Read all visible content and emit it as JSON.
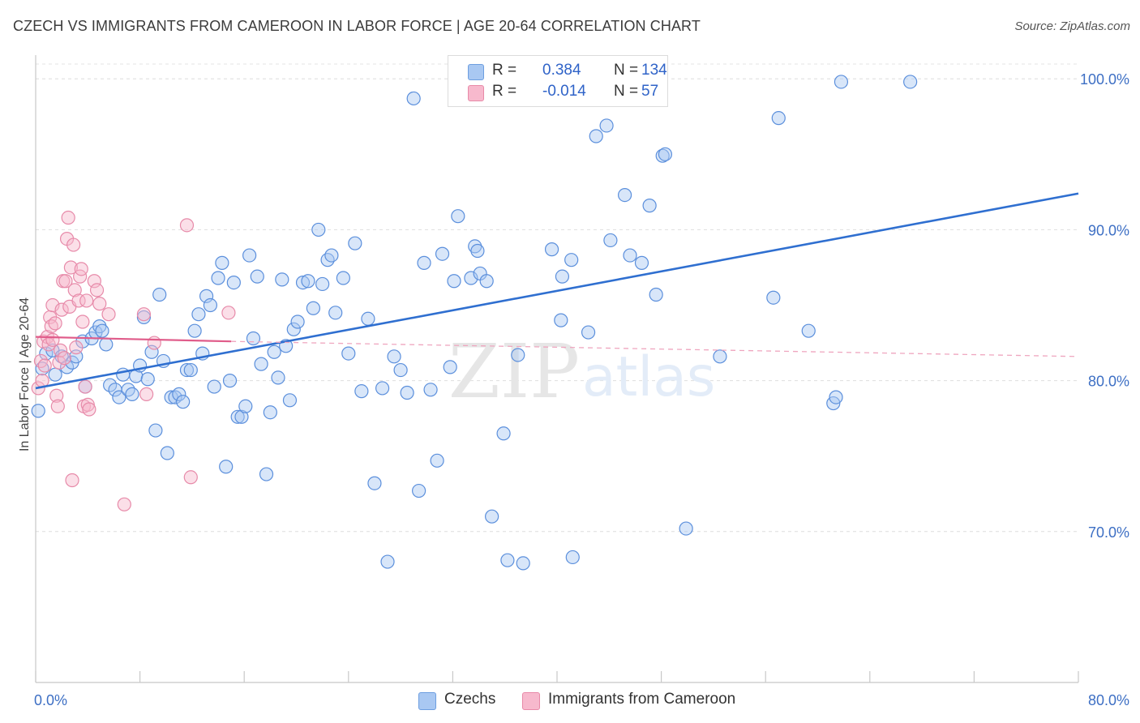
{
  "title": "CZECH VS IMMIGRANTS FROM CAMEROON IN LABOR FORCE | AGE 20-64 CORRELATION CHART",
  "source": "Source: ZipAtlas.com",
  "watermark": {
    "zip": "ZIP",
    "atlas": "atlas"
  },
  "legend": {
    "rows": [
      {
        "r_label": "R =",
        "r_value": "0.384",
        "n_label": "N =",
        "n_value": "134",
        "color": "#a9c8f2",
        "border": "#6d9ee0"
      },
      {
        "r_label": "R =",
        "r_value": "-0.014",
        "n_label": "N =",
        "n_value": "57",
        "color": "#f7b9cd",
        "border": "#e88aa8"
      }
    ]
  },
  "bottom_legend": [
    {
      "label": "Czechs",
      "color": "#a9c8f2",
      "border": "#6d9ee0"
    },
    {
      "label": "Immigrants from Cameroon",
      "color": "#f7b9cd",
      "border": "#e88aa8"
    }
  ],
  "chart_data": {
    "type": "scatter",
    "title": "CZECH VS IMMIGRANTS FROM CAMEROON IN LABOR FORCE | AGE 20-64 CORRELATION CHART",
    "xlabel": "",
    "ylabel": "In Labor Force | Age 20-64",
    "xlim": [
      0,
      80
    ],
    "ylim": [
      60,
      102
    ],
    "y_ticks": [
      {
        "value": 100,
        "label": "100.0%"
      },
      {
        "value": 90,
        "label": "90.0%"
      },
      {
        "value": 80,
        "label": "80.0%"
      },
      {
        "value": 70,
        "label": "70.0%"
      }
    ],
    "x_tick_labels": [
      {
        "value": 0,
        "label": "0.0%"
      },
      {
        "value": 80,
        "label": "80.0%"
      }
    ],
    "x_minor_ticks": [
      0,
      8,
      16,
      24,
      32,
      40,
      48,
      56,
      64,
      72,
      80
    ],
    "grid": true,
    "colors": {
      "czechs_fill": "#a9c8f2",
      "czechs_stroke": "#5b8fdc",
      "czechs_line": "#2f6fd0",
      "cameroon_fill": "#f7b9cd",
      "cameroon_stroke": "#e78aa9",
      "cameroon_line": "#e05c8a"
    },
    "series": [
      {
        "name": "Czechs",
        "trend": {
          "x": [
            0,
            80
          ],
          "y": [
            79.5,
            92.4
          ]
        },
        "points": [
          [
            0.2,
            78.0
          ],
          [
            0.5,
            80.8
          ],
          [
            0.8,
            81.8
          ],
          [
            1.3,
            82.0
          ],
          [
            1.5,
            80.4
          ],
          [
            2.0,
            81.6
          ],
          [
            2.4,
            80.9
          ],
          [
            2.8,
            81.2
          ],
          [
            3.1,
            81.6
          ],
          [
            3.6,
            82.6
          ],
          [
            3.8,
            79.6
          ],
          [
            4.3,
            82.8
          ],
          [
            4.6,
            83.2
          ],
          [
            4.9,
            83.6
          ],
          [
            5.1,
            83.3
          ],
          [
            5.4,
            82.4
          ],
          [
            5.7,
            79.7
          ],
          [
            6.1,
            79.4
          ],
          [
            6.4,
            78.9
          ],
          [
            6.7,
            80.4
          ],
          [
            7.1,
            79.4
          ],
          [
            7.4,
            79.1
          ],
          [
            7.7,
            80.3
          ],
          [
            8.0,
            81.0
          ],
          [
            8.3,
            84.2
          ],
          [
            8.6,
            80.1
          ],
          [
            8.9,
            81.9
          ],
          [
            9.2,
            76.7
          ],
          [
            9.5,
            85.7
          ],
          [
            9.8,
            81.3
          ],
          [
            10.1,
            75.2
          ],
          [
            10.4,
            78.9
          ],
          [
            10.7,
            78.9
          ],
          [
            11.0,
            79.1
          ],
          [
            11.3,
            78.6
          ],
          [
            11.6,
            80.7
          ],
          [
            11.9,
            80.7
          ],
          [
            12.2,
            83.3
          ],
          [
            12.5,
            84.4
          ],
          [
            12.8,
            81.8
          ],
          [
            13.1,
            85.6
          ],
          [
            13.4,
            85.0
          ],
          [
            13.7,
            79.6
          ],
          [
            14.0,
            86.8
          ],
          [
            14.3,
            87.8
          ],
          [
            14.6,
            74.3
          ],
          [
            14.9,
            80.0
          ],
          [
            15.2,
            86.5
          ],
          [
            15.5,
            77.6
          ],
          [
            15.8,
            77.6
          ],
          [
            16.1,
            78.3
          ],
          [
            16.4,
            88.3
          ],
          [
            16.7,
            82.8
          ],
          [
            17.0,
            86.9
          ],
          [
            17.3,
            81.1
          ],
          [
            17.7,
            73.8
          ],
          [
            18.0,
            77.9
          ],
          [
            18.3,
            81.9
          ],
          [
            18.6,
            80.2
          ],
          [
            18.9,
            86.7
          ],
          [
            19.2,
            82.3
          ],
          [
            19.5,
            78.7
          ],
          [
            19.8,
            83.4
          ],
          [
            20.1,
            83.9
          ],
          [
            20.5,
            86.5
          ],
          [
            20.9,
            86.6
          ],
          [
            21.3,
            84.8
          ],
          [
            21.7,
            90.0
          ],
          [
            22.0,
            86.4
          ],
          [
            22.4,
            88.0
          ],
          [
            22.7,
            88.3
          ],
          [
            23.0,
            84.5
          ],
          [
            23.6,
            86.8
          ],
          [
            24.0,
            81.8
          ],
          [
            24.5,
            89.1
          ],
          [
            25.0,
            79.3
          ],
          [
            25.5,
            84.1
          ],
          [
            26.0,
            73.2
          ],
          [
            26.6,
            79.5
          ],
          [
            27.0,
            68.0
          ],
          [
            27.5,
            81.6
          ],
          [
            28.0,
            80.7
          ],
          [
            28.5,
            79.2
          ],
          [
            29.0,
            98.7
          ],
          [
            29.4,
            72.7
          ],
          [
            29.8,
            87.8
          ],
          [
            30.3,
            79.4
          ],
          [
            30.8,
            74.7
          ],
          [
            31.2,
            88.4
          ],
          [
            31.8,
            80.9
          ],
          [
            32.1,
            86.6
          ],
          [
            32.4,
            90.9
          ],
          [
            33.4,
            86.8
          ],
          [
            33.7,
            88.9
          ],
          [
            33.9,
            88.6
          ],
          [
            34.1,
            87.1
          ],
          [
            34.6,
            86.6
          ],
          [
            35.0,
            71.0
          ],
          [
            35.9,
            76.5
          ],
          [
            36.2,
            68.1
          ],
          [
            36.5,
            100.0
          ],
          [
            37.0,
            81.7
          ],
          [
            37.4,
            67.9
          ],
          [
            39.6,
            88.7
          ],
          [
            40.3,
            84.0
          ],
          [
            40.4,
            86.9
          ],
          [
            41.1,
            88.0
          ],
          [
            41.2,
            68.3
          ],
          [
            41.9,
            100.0
          ],
          [
            42.4,
            83.2
          ],
          [
            43.0,
            96.2
          ],
          [
            43.8,
            96.9
          ],
          [
            44.1,
            89.3
          ],
          [
            44.9,
            99.9
          ],
          [
            45.2,
            92.3
          ],
          [
            45.6,
            88.3
          ],
          [
            46.5,
            87.8
          ],
          [
            47.1,
            91.6
          ],
          [
            47.6,
            85.7
          ],
          [
            48.1,
            94.9
          ],
          [
            48.3,
            95.0
          ],
          [
            49.9,
            70.2
          ],
          [
            52.5,
            81.6
          ],
          [
            56.6,
            85.5
          ],
          [
            57.0,
            97.4
          ],
          [
            59.3,
            83.3
          ],
          [
            61.2,
            78.5
          ],
          [
            61.4,
            78.9
          ],
          [
            61.8,
            99.8
          ],
          [
            67.1,
            99.8
          ]
        ]
      },
      {
        "name": "Immigrants from Cameroon",
        "trend_solid": {
          "x": [
            0,
            15
          ],
          "y": [
            82.9,
            82.6
          ]
        },
        "trend_dashed": {
          "x": [
            15,
            80
          ],
          "y": [
            82.6,
            81.6
          ]
        },
        "points": [
          [
            0.2,
            79.5
          ],
          [
            0.4,
            81.3
          ],
          [
            0.5,
            80.0
          ],
          [
            0.6,
            82.6
          ],
          [
            0.7,
            81.0
          ],
          [
            0.9,
            82.9
          ],
          [
            1.0,
            82.4
          ],
          [
            1.1,
            84.2
          ],
          [
            1.2,
            83.6
          ],
          [
            1.3,
            85.0
          ],
          [
            1.3,
            82.7
          ],
          [
            1.5,
            83.8
          ],
          [
            1.6,
            79.0
          ],
          [
            1.7,
            78.3
          ],
          [
            1.8,
            81.2
          ],
          [
            1.9,
            82.0
          ],
          [
            2.0,
            84.7
          ],
          [
            2.1,
            86.6
          ],
          [
            2.2,
            81.5
          ],
          [
            2.3,
            86.6
          ],
          [
            2.4,
            89.4
          ],
          [
            2.5,
            90.8
          ],
          [
            2.6,
            84.9
          ],
          [
            2.7,
            87.5
          ],
          [
            2.8,
            73.4
          ],
          [
            2.9,
            89.0
          ],
          [
            3.0,
            86.0
          ],
          [
            3.1,
            82.2
          ],
          [
            3.3,
            85.3
          ],
          [
            3.4,
            86.9
          ],
          [
            3.5,
            87.4
          ],
          [
            3.6,
            83.9
          ],
          [
            3.7,
            78.3
          ],
          [
            3.8,
            79.6
          ],
          [
            3.9,
            85.3
          ],
          [
            4.0,
            78.4
          ],
          [
            4.1,
            78.1
          ],
          [
            4.5,
            86.6
          ],
          [
            4.7,
            86.0
          ],
          [
            4.9,
            85.1
          ],
          [
            5.6,
            84.4
          ],
          [
            6.8,
            71.8
          ],
          [
            8.3,
            84.4
          ],
          [
            8.5,
            79.1
          ],
          [
            9.1,
            82.5
          ],
          [
            11.6,
            90.3
          ],
          [
            11.9,
            73.6
          ],
          [
            14.8,
            84.5
          ]
        ]
      }
    ]
  }
}
